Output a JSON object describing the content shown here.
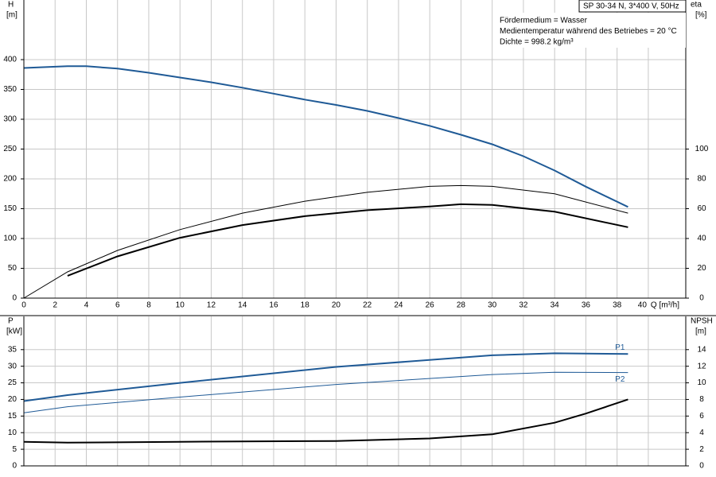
{
  "info": {
    "title": "SP 30-34 N, 3*400 V, 50Hz",
    "lines": [
      "Fördermedium = Wasser",
      "Medientemperatur während des Betriebes = 20 °C",
      "Dichte = 998.2 kg/m³"
    ]
  },
  "chart_data": [
    {
      "type": "line",
      "ylabel": [
        "H",
        "[m]"
      ],
      "y2label": [
        "eta",
        "[%]"
      ],
      "xlabel": "Q [m³/h]",
      "xlim": [
        0,
        42.4
      ],
      "xticks": [
        0,
        2,
        4,
        6,
        8,
        10,
        12,
        14,
        16,
        18,
        20,
        22,
        24,
        26,
        28,
        30,
        32,
        34,
        36,
        38,
        40
      ],
      "xtick_labels": true,
      "ylim": [
        0,
        500
      ],
      "yticks": [
        0,
        50,
        100,
        150,
        200,
        250,
        300,
        350,
        400
      ],
      "y2lim": [
        0,
        200
      ],
      "y2ticks": [
        0,
        20,
        40,
        60,
        80,
        100
      ],
      "grid": true,
      "series": [
        {
          "color": "#1f5a96",
          "width": 2,
          "axis": "y",
          "x": [
            0,
            2.8,
            4,
            6,
            8,
            10,
            12,
            14,
            16,
            18,
            20,
            22,
            24,
            26,
            28,
            30,
            32,
            34,
            36,
            38.7
          ],
          "values": [
            386,
            389,
            389,
            385,
            378,
            370,
            362,
            353,
            343,
            333,
            324,
            314,
            302,
            289,
            274,
            258,
            238,
            214,
            187,
            153
          ]
        },
        {
          "color": "#000000",
          "width": 1,
          "axis": "y2",
          "x": [
            0,
            2.8,
            6,
            10,
            14,
            18,
            22,
            26,
            28,
            30,
            34,
            38.7
          ],
          "values": [
            0,
            17.6,
            32,
            46,
            57,
            65,
            71,
            75,
            75.5,
            75,
            70,
            57
          ]
        },
        {
          "color": "#000000",
          "width": 2,
          "axis": "y2",
          "x": [
            2.8,
            6,
            10,
            14,
            18,
            22,
            26,
            28,
            30,
            34,
            38.7
          ],
          "values": [
            15,
            28,
            40.5,
            49,
            55,
            59,
            61.5,
            63,
            62.5,
            58,
            47.6
          ]
        }
      ]
    },
    {
      "type": "line",
      "ylabel": [
        "P",
        "[kW]"
      ],
      "y2label": [
        "NPSH",
        "[m]"
      ],
      "xlim": [
        0,
        42.4
      ],
      "xticks": [
        0,
        2,
        4,
        6,
        8,
        10,
        12,
        14,
        16,
        18,
        20,
        22,
        24,
        26,
        28,
        30,
        32,
        34,
        36,
        38,
        40
      ],
      "xtick_labels": false,
      "ylim": [
        0,
        45
      ],
      "yticks": [
        0,
        5,
        10,
        15,
        20,
        25,
        30,
        35
      ],
      "y2lim": [
        0,
        18
      ],
      "y2ticks": [
        0,
        2,
        4,
        6,
        8,
        10,
        12,
        14
      ],
      "grid": true,
      "series": [
        {
          "name": "P1",
          "color": "#1f5a96",
          "width": 2,
          "axis": "y",
          "x": [
            0,
            2.8,
            10,
            20,
            30,
            34,
            38.7
          ],
          "values": [
            19.5,
            21.3,
            25,
            29.8,
            33.3,
            33.9,
            33.7
          ]
        },
        {
          "name": "P2",
          "color": "#1f5a96",
          "width": 1,
          "axis": "y",
          "x": [
            0,
            2.8,
            10,
            20,
            30,
            34,
            38.7
          ],
          "values": [
            16,
            17.8,
            20.7,
            24.5,
            27.5,
            28.2,
            28.1
          ]
        },
        {
          "color": "#000000",
          "width": 2,
          "axis": "y2",
          "x": [
            0,
            2.8,
            10,
            20,
            26,
            30,
            34,
            36,
            38.7
          ],
          "values": [
            2.9,
            2.8,
            2.9,
            3.0,
            3.3,
            3.8,
            5.2,
            6.3,
            8.0
          ]
        }
      ]
    }
  ]
}
